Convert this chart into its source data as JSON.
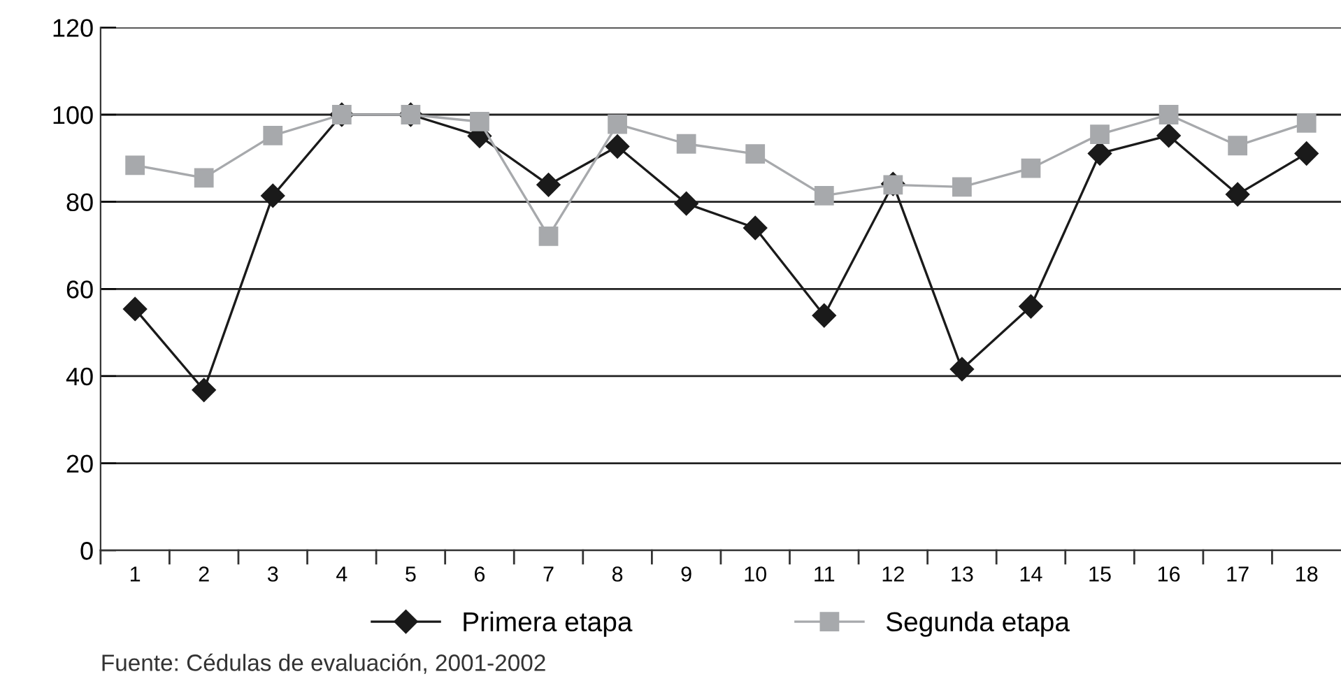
{
  "chart_data": {
    "type": "line",
    "categories": [
      "1",
      "2",
      "3",
      "4",
      "5",
      "6",
      "7",
      "8",
      "9",
      "10",
      "11",
      "12",
      "13",
      "14",
      "15",
      "16",
      "17",
      "18"
    ],
    "series": [
      {
        "name": "Primera etapa",
        "color": "#1a1a1a",
        "marker": "diamond",
        "values": [
          55.4,
          36.8,
          81.4,
          100,
          100,
          95.1,
          83.9,
          92.7,
          79.6,
          74,
          53.9,
          84.1,
          41.6,
          56,
          91.1,
          95.2,
          81.7,
          91.1
        ]
      },
      {
        "name": "Segunda etapa",
        "color": "#a7a9ac",
        "marker": "square",
        "values": [
          88.4,
          85.5,
          95.2,
          100,
          100,
          98.4,
          72.1,
          97.8,
          93.3,
          91,
          81.4,
          83.9,
          83.4,
          87.7,
          95.5,
          100,
          92.9,
          98.1
        ]
      }
    ],
    "ylim": [
      0,
      120
    ],
    "yticks": [
      0,
      20,
      40,
      60,
      80,
      100,
      120
    ],
    "grid": "y",
    "legend": "bottom",
    "annotations": [
      "Fuente: Cédulas de evaluación, 2001-2002"
    ]
  }
}
